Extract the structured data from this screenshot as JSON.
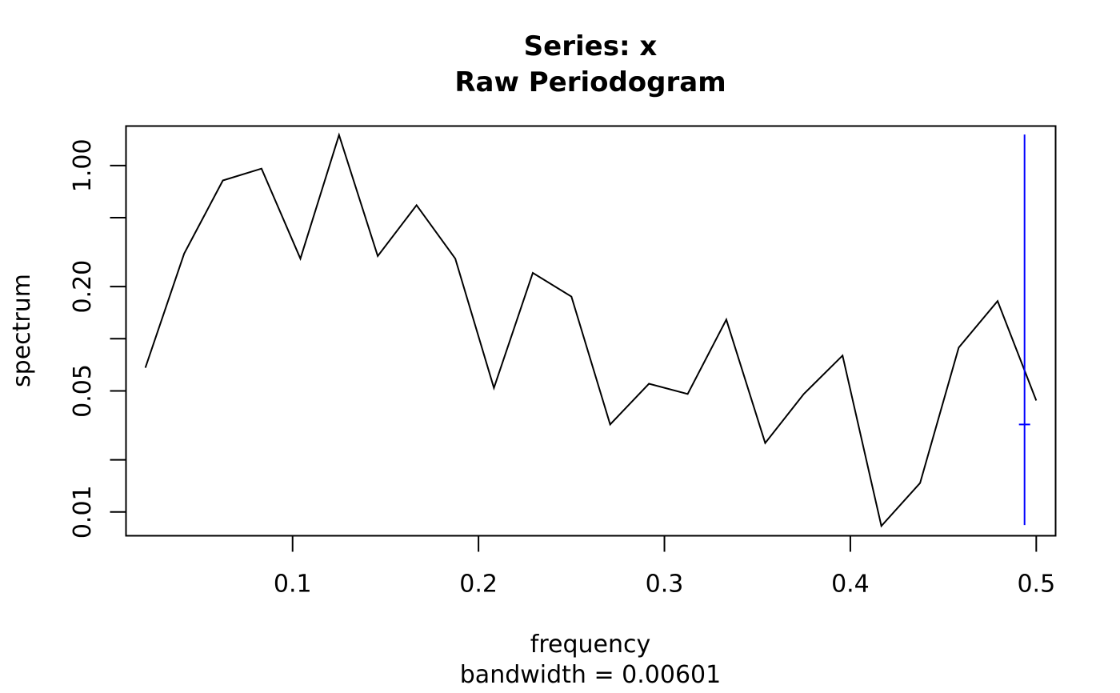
{
  "chart_data": {
    "type": "line",
    "title": "Series: x",
    "subtitle": "Raw Periodogram",
    "xlabel": "frequency",
    "xsublabel": "bandwidth = 0.00601",
    "ylabel": "spectrum",
    "y_scale": "log",
    "xlim": [
      0.0104,
      0.5104
    ],
    "ylim": [
      0.00729,
      1.69
    ],
    "x_ticks": [
      0.1,
      0.2,
      0.3,
      0.4,
      0.5
    ],
    "x_tick_labels": [
      "0.1",
      "0.2",
      "0.3",
      "0.4",
      "0.5"
    ],
    "y_ticks": [
      0.01,
      0.02,
      0.05,
      0.1,
      0.2,
      0.5,
      1.0
    ],
    "y_tick_labels": [
      "0.01",
      "",
      "0.05",
      "",
      "0.20",
      "",
      "1.00"
    ],
    "grid": false,
    "series": [
      {
        "color": "#000000",
        "x": [
          0.0208,
          0.0417,
          0.0625,
          0.0833,
          0.1042,
          0.125,
          0.1458,
          0.1667,
          0.1875,
          0.2083,
          0.2292,
          0.25,
          0.2708,
          0.2917,
          0.3125,
          0.3333,
          0.3542,
          0.375,
          0.3958,
          0.4167,
          0.4375,
          0.4583,
          0.4792,
          0.5
        ],
        "y": [
          0.068,
          0.31,
          0.82,
          0.96,
          0.29,
          1.5,
          0.3,
          0.59,
          0.29,
          0.052,
          0.24,
          0.175,
          0.032,
          0.055,
          0.048,
          0.129,
          0.025,
          0.048,
          0.08,
          0.0083,
          0.0147,
          0.089,
          0.165,
          0.044
        ]
      }
    ],
    "ci_bar": {
      "color": "#0000ff",
      "x": 0.4937,
      "y_low": 0.0084,
      "y_high": 1.51,
      "y_center": 0.032
    }
  }
}
